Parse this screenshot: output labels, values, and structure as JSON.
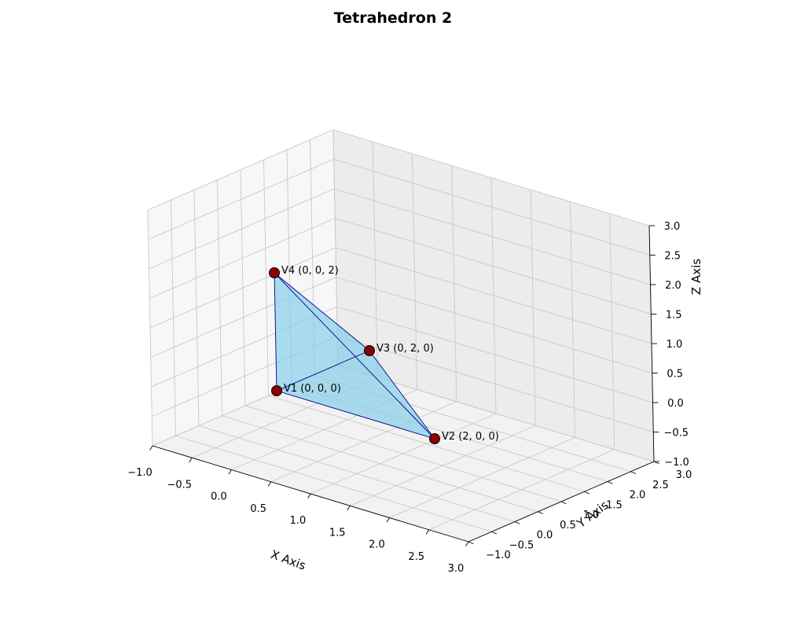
{
  "chart_data": {
    "type": "3d-polyhedron",
    "title": "Tetrahedron 2",
    "xlabel": "X Axis",
    "ylabel": "Y Axis",
    "zlabel": "Z Axis",
    "xlim": [
      -1.0,
      3.0
    ],
    "ylim": [
      -1.0,
      3.0
    ],
    "zlim": [
      -1.0,
      3.0
    ],
    "xticks": [
      "−1.0",
      "−0.5",
      "0.0",
      "0.5",
      "1.0",
      "1.5",
      "2.0",
      "2.5",
      "3.0"
    ],
    "yticks": [
      "−1.0",
      "−0.5",
      "0.0",
      "0.5",
      "1.0",
      "1.5",
      "2.0",
      "2.5",
      "3.0"
    ],
    "zticks": [
      "−1.0",
      "−0.5",
      "0.0",
      "0.5",
      "1.0",
      "1.5",
      "2.0",
      "2.5",
      "3.0"
    ],
    "grid": true,
    "face_color": "#87ceeb",
    "edge_color": "#00008b",
    "vertex_color": "#8b0000",
    "vertices": [
      {
        "label": "V1 (0, 0, 0)",
        "x": 0,
        "y": 0,
        "z": 0
      },
      {
        "label": "V2 (2, 0, 0)",
        "x": 2,
        "y": 0,
        "z": 0
      },
      {
        "label": "V3 (0, 2, 0)",
        "x": 0,
        "y": 2,
        "z": 0
      },
      {
        "label": "V4 (0, 0, 2)",
        "x": 0,
        "y": 0,
        "z": 2
      }
    ],
    "faces": [
      [
        0,
        1,
        2
      ],
      [
        0,
        1,
        3
      ],
      [
        0,
        2,
        3
      ],
      [
        1,
        2,
        3
      ]
    ]
  }
}
